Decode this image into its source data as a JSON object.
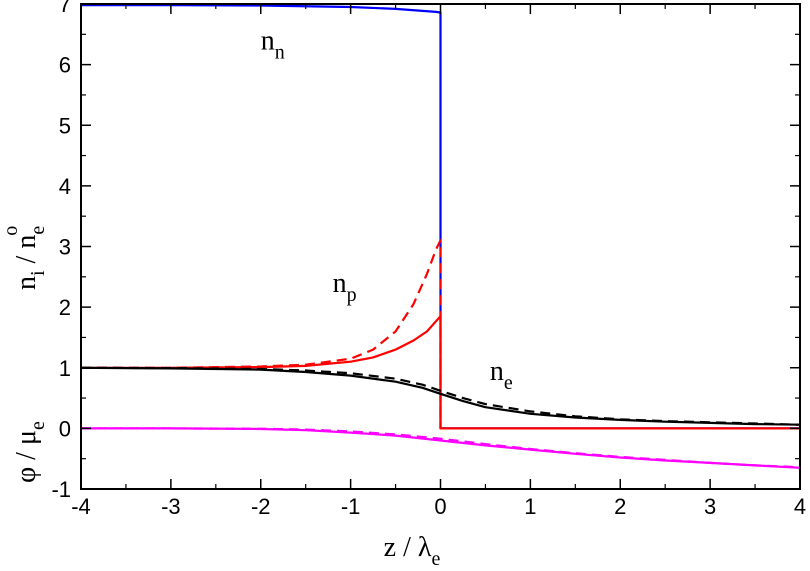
{
  "chart_data": {
    "type": "line",
    "title": "",
    "xlabel": "z / λ_e",
    "ylabel_upper": "n_i / n_e^o",
    "ylabel_lower": "φ / μ_e",
    "xlim": [
      -4,
      4
    ],
    "ylim": [
      -1,
      7
    ],
    "grid": false,
    "legend": "none",
    "x_ticks": [
      -4,
      -3,
      -2,
      -1,
      0,
      1,
      2,
      3,
      4
    ],
    "y_ticks": [
      -1,
      0,
      1,
      2,
      3,
      4,
      5,
      6,
      7
    ],
    "annotations": [
      {
        "base": "n",
        "sub": "n",
        "x": -2.0,
        "y": 6.25
      },
      {
        "base": "n",
        "sub": "p",
        "x": -1.2,
        "y": 2.25
      },
      {
        "base": "n",
        "sub": "e",
        "x": 0.55,
        "y": 0.8
      }
    ],
    "series": [
      {
        "color": "#0000ff",
        "style": "solid",
        "points": [
          [
            -4,
            6.98
          ],
          [
            -3,
            6.98
          ],
          [
            -2,
            6.975
          ],
          [
            -1,
            6.95
          ],
          [
            -0.5,
            6.92
          ],
          [
            -0.05,
            6.87
          ],
          [
            0,
            6.86
          ],
          [
            0,
            0.0
          ],
          [
            4,
            0.0
          ]
        ]
      },
      {
        "color": "#ff0000",
        "style": "solid",
        "points": [
          [
            -4,
            1.0
          ],
          [
            -3,
            1.0
          ],
          [
            -2,
            1.01
          ],
          [
            -1.5,
            1.03
          ],
          [
            -1.0,
            1.1
          ],
          [
            -0.75,
            1.17
          ],
          [
            -0.5,
            1.3
          ],
          [
            -0.3,
            1.45
          ],
          [
            -0.15,
            1.6
          ],
          [
            0,
            1.85
          ],
          [
            0,
            0.0
          ],
          [
            4,
            0.0
          ]
        ]
      },
      {
        "color": "#ff0000",
        "style": "dashed",
        "points": [
          [
            -4,
            1.0
          ],
          [
            -3,
            1.0
          ],
          [
            -2,
            1.02
          ],
          [
            -1.5,
            1.05
          ],
          [
            -1.0,
            1.15
          ],
          [
            -0.75,
            1.3
          ],
          [
            -0.5,
            1.6
          ],
          [
            -0.3,
            2.05
          ],
          [
            -0.15,
            2.55
          ],
          [
            -0.05,
            2.95
          ],
          [
            0,
            3.1
          ],
          [
            0,
            0.0
          ]
        ]
      },
      {
        "color": "#000000",
        "style": "solid",
        "points": [
          [
            -4,
            1.0
          ],
          [
            -3,
            0.99
          ],
          [
            -2,
            0.97
          ],
          [
            -1.5,
            0.93
          ],
          [
            -1.0,
            0.87
          ],
          [
            -0.5,
            0.77
          ],
          [
            -0.2,
            0.67
          ],
          [
            0,
            0.57
          ],
          [
            0.25,
            0.45
          ],
          [
            0.5,
            0.35
          ],
          [
            1,
            0.24
          ],
          [
            1.5,
            0.18
          ],
          [
            2,
            0.14
          ],
          [
            2.5,
            0.11
          ],
          [
            3,
            0.09
          ],
          [
            3.5,
            0.07
          ],
          [
            4,
            0.06
          ]
        ]
      },
      {
        "color": "#000000",
        "style": "dashed",
        "points": [
          [
            -4,
            1.0
          ],
          [
            -3,
            0.995
          ],
          [
            -2,
            0.98
          ],
          [
            -1.5,
            0.955
          ],
          [
            -1.0,
            0.91
          ],
          [
            -0.5,
            0.82
          ],
          [
            -0.2,
            0.72
          ],
          [
            0,
            0.62
          ],
          [
            0.25,
            0.5
          ],
          [
            0.5,
            0.4
          ],
          [
            1,
            0.28
          ],
          [
            1.5,
            0.2
          ],
          [
            2,
            0.15
          ],
          [
            2.5,
            0.12
          ],
          [
            3,
            0.1
          ],
          [
            3.5,
            0.08
          ],
          [
            4,
            0.06
          ]
        ]
      },
      {
        "color": "#ff00ff",
        "style": "solid",
        "points": [
          [
            -4,
            0.0
          ],
          [
            -3,
            0.0
          ],
          [
            -2,
            -0.01
          ],
          [
            -1.5,
            -0.03
          ],
          [
            -1.0,
            -0.07
          ],
          [
            -0.5,
            -0.12
          ],
          [
            0,
            -0.2
          ],
          [
            0.5,
            -0.28
          ],
          [
            1,
            -0.35
          ],
          [
            1.5,
            -0.42
          ],
          [
            2,
            -0.48
          ],
          [
            2.5,
            -0.53
          ],
          [
            3,
            -0.57
          ],
          [
            3.5,
            -0.61
          ],
          [
            4,
            -0.65
          ]
        ]
      },
      {
        "color": "#ff00ff",
        "style": "dashed",
        "points": [
          [
            -4,
            0.0
          ],
          [
            -3,
            0.0
          ],
          [
            -2,
            -0.005
          ],
          [
            -1.5,
            -0.02
          ],
          [
            -1.0,
            -0.05
          ],
          [
            -0.5,
            -0.1
          ],
          [
            0,
            -0.17
          ],
          [
            0.5,
            -0.26
          ],
          [
            1,
            -0.34
          ],
          [
            1.5,
            -0.41
          ],
          [
            2,
            -0.47
          ],
          [
            2.5,
            -0.52
          ],
          [
            3,
            -0.57
          ],
          [
            3.5,
            -0.61
          ],
          [
            4,
            -0.64
          ]
        ]
      }
    ]
  }
}
